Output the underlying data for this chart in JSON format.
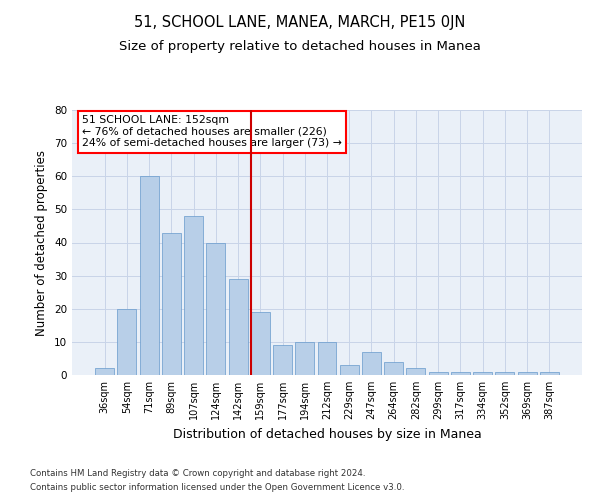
{
  "title": "51, SCHOOL LANE, MANEA, MARCH, PE15 0JN",
  "subtitle": "Size of property relative to detached houses in Manea",
  "xlabel": "Distribution of detached houses by size in Manea",
  "ylabel": "Number of detached properties",
  "categories": [
    "36sqm",
    "54sqm",
    "71sqm",
    "89sqm",
    "107sqm",
    "124sqm",
    "142sqm",
    "159sqm",
    "177sqm",
    "194sqm",
    "212sqm",
    "229sqm",
    "247sqm",
    "264sqm",
    "282sqm",
    "299sqm",
    "317sqm",
    "334sqm",
    "352sqm",
    "369sqm",
    "387sqm"
  ],
  "values": [
    2,
    20,
    60,
    43,
    48,
    40,
    29,
    19,
    9,
    10,
    10,
    3,
    7,
    4,
    2,
    1,
    1,
    1,
    1,
    1,
    1
  ],
  "bar_color": "#b8cfe8",
  "bar_edge_color": "#6699cc",
  "vline_color": "#cc0000",
  "annotation_box_text": "51 SCHOOL LANE: 152sqm\n← 76% of detached houses are smaller (226)\n24% of semi-detached houses are larger (73) →",
  "ylim": [
    0,
    80
  ],
  "yticks": [
    0,
    10,
    20,
    30,
    40,
    50,
    60,
    70,
    80
  ],
  "grid_color": "#c8d4e8",
  "background_color": "#eaf0f8",
  "footer_line1": "Contains HM Land Registry data © Crown copyright and database right 2024.",
  "footer_line2": "Contains public sector information licensed under the Open Government Licence v3.0.",
  "title_fontsize": 10.5,
  "subtitle_fontsize": 9.5,
  "tick_fontsize": 7,
  "ylabel_fontsize": 8.5,
  "xlabel_fontsize": 9
}
